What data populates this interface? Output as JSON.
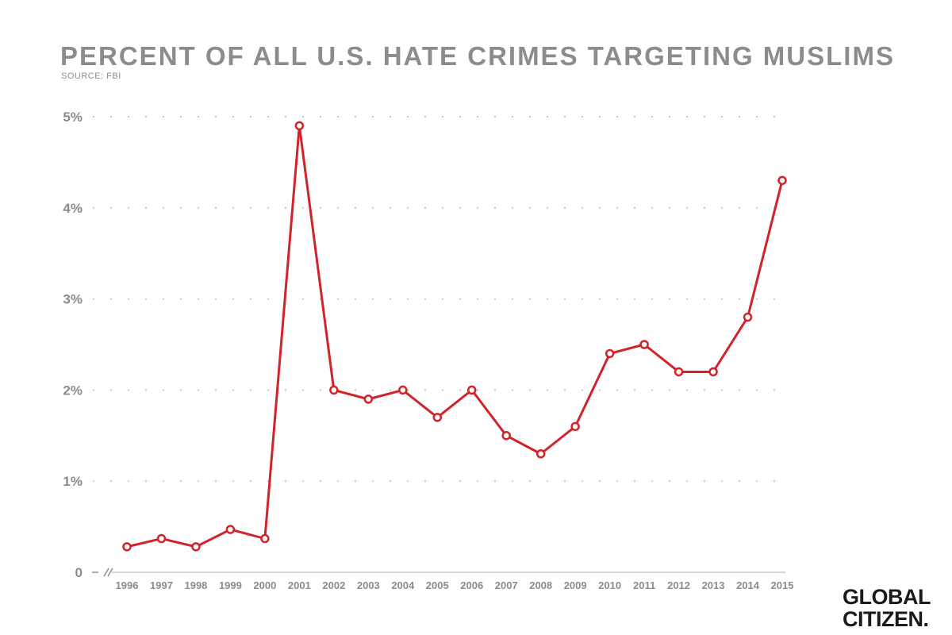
{
  "title": "PERCENT OF ALL U.S. HATE CRIMES TARGETING MUSLIMS",
  "source": "SOURCE: FBI",
  "brand": {
    "line1": "GLOBAL",
    "line2": "CITIZEN."
  },
  "colors": {
    "line": "#d2232a",
    "grid": "#b5b5b5",
    "text": "#8c8c8c",
    "brand": "#1a1a1a"
  },
  "chart_data": {
    "type": "line",
    "title": "PERCENT OF ALL U.S. HATE CRIMES TARGETING MUSLIMS",
    "subtitle": "SOURCE: FBI",
    "x": [
      "1996",
      "1997",
      "1998",
      "1999",
      "2000",
      "2001",
      "2002",
      "2003",
      "2004",
      "2005",
      "2006",
      "2007",
      "2008",
      "2009",
      "2010",
      "2011",
      "2012",
      "2013",
      "2014",
      "2015"
    ],
    "series": [
      {
        "values": [
          0.28,
          0.37,
          0.28,
          0.47,
          0.37,
          4.9,
          2.0,
          1.9,
          2.0,
          1.7,
          2.0,
          1.5,
          1.3,
          1.6,
          2.4,
          2.5,
          2.2,
          2.2,
          2.8,
          4.3
        ]
      }
    ],
    "yticks": [
      "0",
      "1%",
      "2%",
      "3%",
      "4%",
      "5%"
    ],
    "ylim": [
      0,
      5
    ],
    "grid": "dotted horizontal",
    "axis_break": true
  }
}
